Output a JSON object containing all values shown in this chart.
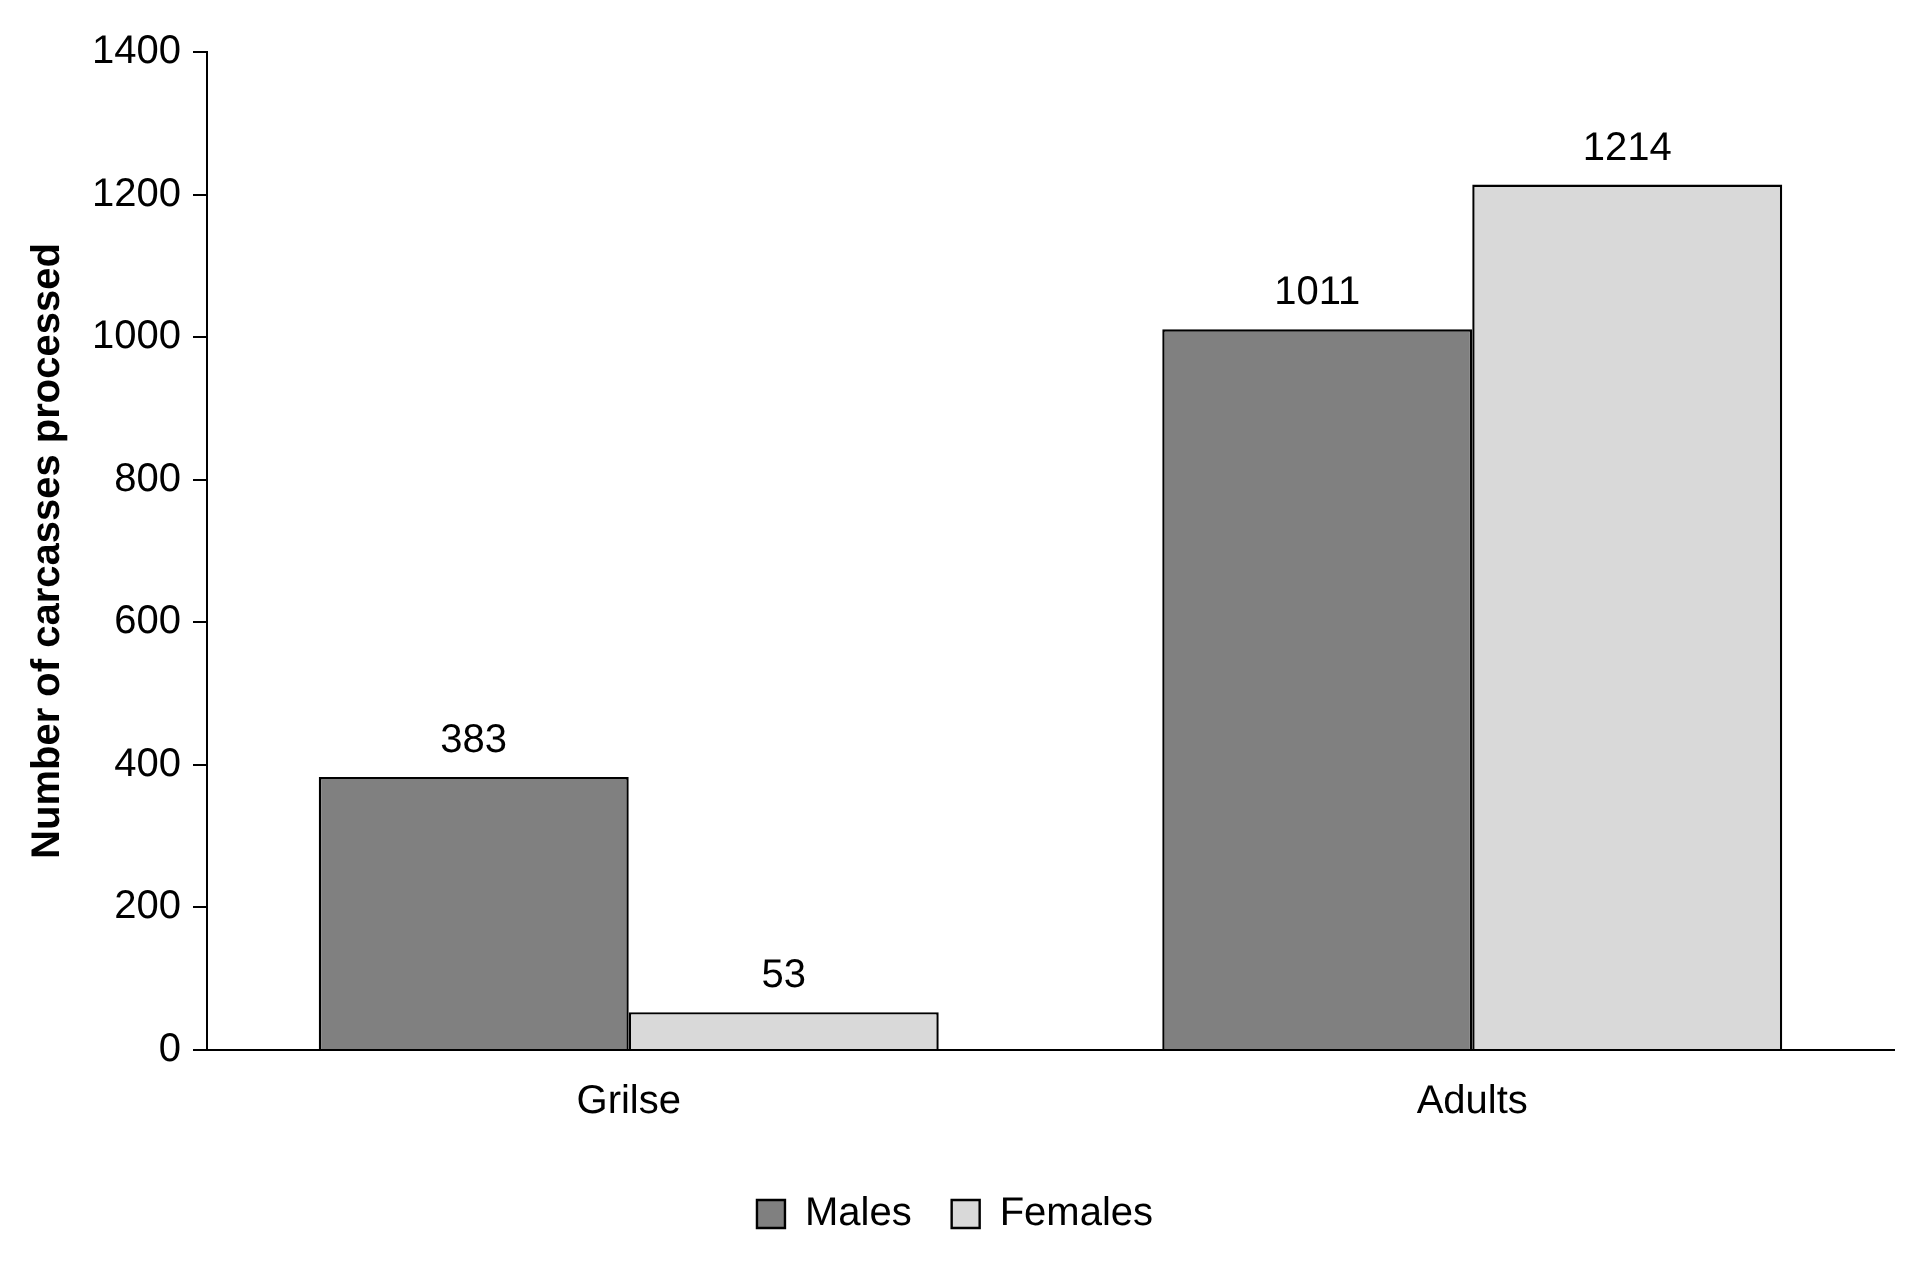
{
  "chart_data": {
    "type": "bar",
    "ylabel": "Number of carcasses processed",
    "categories": [
      "Grilse",
      "Adults"
    ],
    "series": [
      {
        "name": "Males",
        "color": "#808080",
        "values": [
          383,
          1011
        ]
      },
      {
        "name": "Females",
        "color": "#d9d9d9",
        "values": [
          53,
          1214
        ]
      }
    ],
    "ylim": [
      0,
      1400
    ],
    "yticks": [
      0,
      200,
      400,
      600,
      800,
      1000,
      1200,
      1400
    ],
    "grid": false,
    "legend": "bottom",
    "data_labels": true
  }
}
